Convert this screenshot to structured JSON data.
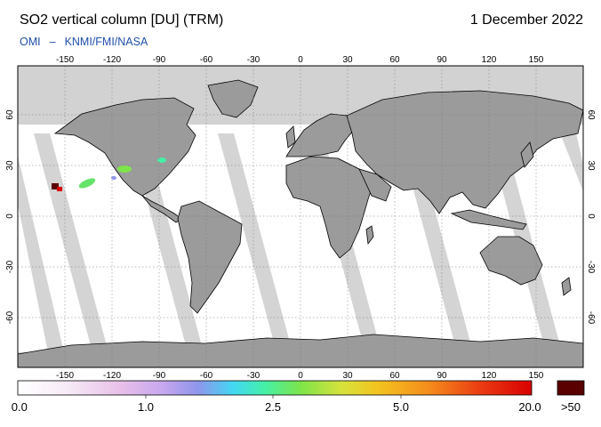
{
  "title": "SO2 vertical column [DU] (TRM)",
  "date": "1 December 2022",
  "credit": {
    "instrument": "OMI",
    "separator": "–",
    "institutions": "KNMI/FMI/NASA"
  },
  "axes": {
    "lon_ticks": [
      "-150",
      "-120",
      "-90",
      "-60",
      "-30",
      "0",
      "30",
      "60",
      "90",
      "120",
      "150"
    ],
    "lat_ticks": [
      "60",
      "30",
      "0",
      "-30",
      "-60"
    ]
  },
  "colorbar": {
    "labels": [
      "0.0",
      "1.0",
      "2.5",
      "5.0",
      "20.0"
    ],
    "overflow_label": ">50",
    "overflow_color": "#5a0000"
  },
  "colors": {
    "ocean_white": "#ffffff",
    "land": "#9b9b9b",
    "no_data": "#d2d2d2",
    "coast": "#000000"
  }
}
